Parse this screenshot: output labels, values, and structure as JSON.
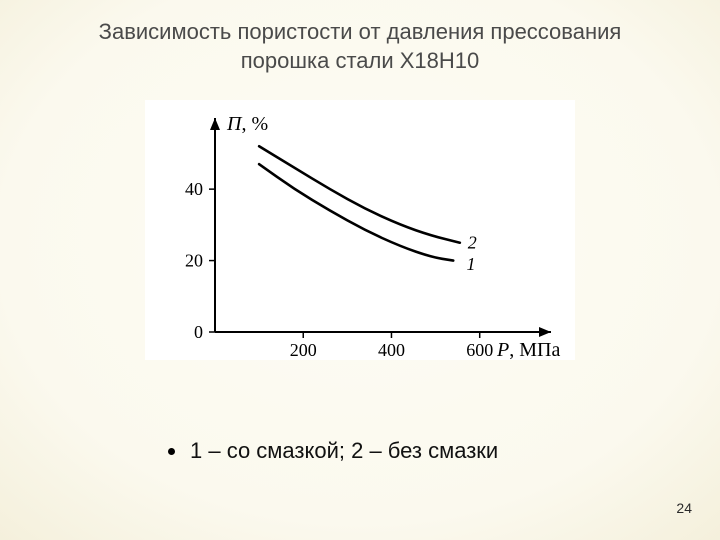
{
  "title_line1": "Зависимость пористости от давления прессования",
  "title_line2": "порошка стали Х18Н10",
  "caption": "1 – со смазкой; 2 – без смазки",
  "pagenum": "24",
  "chart": {
    "type": "line",
    "background_color": "#ffffff",
    "axis_color": "#000000",
    "line_color": "#000000",
    "line_width": 2.6,
    "tick_font_size": 18,
    "label_font_style": "italic",
    "x_label_left": "Р",
    "x_label_right": ",  МПа",
    "y_label_left": "П",
    "y_label_right": ", %",
    "xlim": [
      0,
      680
    ],
    "ylim": [
      0,
      56
    ],
    "x_ticks": [
      200,
      400,
      600
    ],
    "y_ticks": [
      0,
      20,
      40
    ],
    "series": [
      {
        "name": "curve-1",
        "label": "1",
        "label_pos": {
          "x": 570,
          "y": 19
        },
        "points": [
          {
            "x": 100,
            "y": 47
          },
          {
            "x": 180,
            "y": 40
          },
          {
            "x": 260,
            "y": 34
          },
          {
            "x": 340,
            "y": 28.5
          },
          {
            "x": 420,
            "y": 24
          },
          {
            "x": 490,
            "y": 21
          },
          {
            "x": 540,
            "y": 20
          }
        ]
      },
      {
        "name": "curve-2",
        "label": "2",
        "label_pos": {
          "x": 573,
          "y": 25
        },
        "points": [
          {
            "x": 100,
            "y": 52
          },
          {
            "x": 180,
            "y": 46
          },
          {
            "x": 260,
            "y": 40
          },
          {
            "x": 340,
            "y": 34.5
          },
          {
            "x": 420,
            "y": 30
          },
          {
            "x": 490,
            "y": 27
          },
          {
            "x": 555,
            "y": 25
          }
        ]
      }
    ]
  }
}
